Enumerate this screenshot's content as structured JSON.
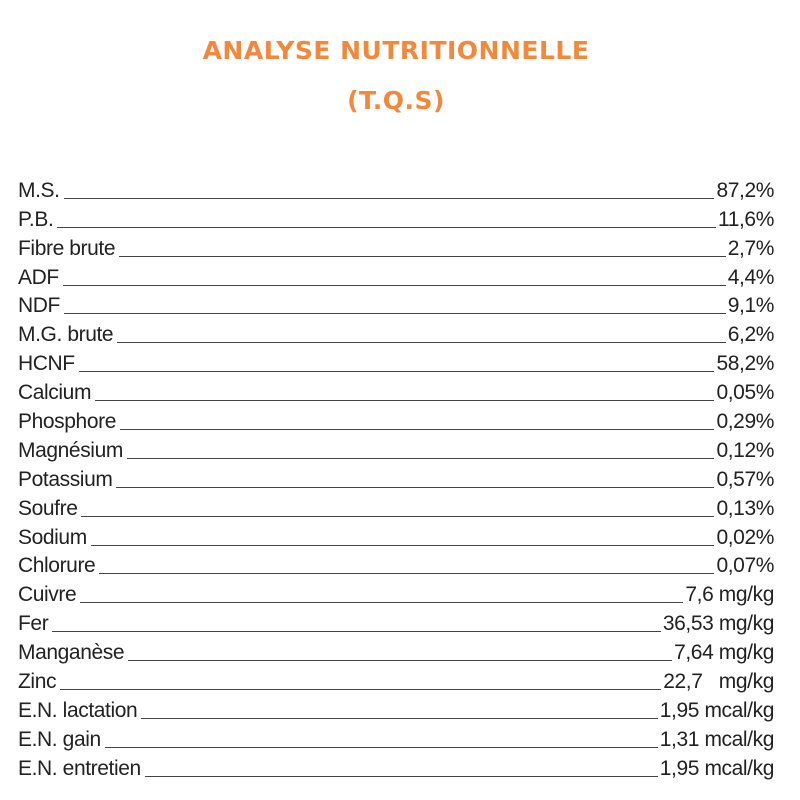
{
  "header": {
    "title": "ANALYSE NUTRITIONNELLE",
    "subtitle": "(T.Q.S)"
  },
  "rows": [
    {
      "label": "M.S.",
      "value": "87,2%"
    },
    {
      "label": "P.B.",
      "value": "11,6%"
    },
    {
      "label": "Fibre brute",
      "value": "2,7%"
    },
    {
      "label": "ADF",
      "value": "4,4%"
    },
    {
      "label": "NDF",
      "value": "9,1%"
    },
    {
      "label": "M.G. brute",
      "value": "6,2%"
    },
    {
      "label": "HCNF",
      "value": "58,2%"
    },
    {
      "label": "Calcium",
      "value": "0,05%"
    },
    {
      "label": "Phosphore",
      "value": "0,29%"
    },
    {
      "label": "Magnésium",
      "value": "0,12%"
    },
    {
      "label": "Potassium",
      "value": "0,57%"
    },
    {
      "label": "Soufre",
      "value": "0,13%"
    },
    {
      "label": "Sodium",
      "value": "0,02%"
    },
    {
      "label": "Chlorure",
      "value": "0,07%"
    },
    {
      "label": "Cuivre",
      "value": "7,6 mg/kg"
    },
    {
      "label": "Fer",
      "value": "36,53 mg/kg"
    },
    {
      "label": "Manganèse",
      "value": "7,64 mg/kg"
    },
    {
      "label": "Zinc",
      "value": "22,7   mg/kg"
    },
    {
      "label": "E.N. lactation",
      "value": "1,95 mcal/kg"
    },
    {
      "label": "E.N. gain",
      "value": "1,31 mcal/kg"
    },
    {
      "label": "E.N. entretien",
      "value": "1,95 mcal/kg"
    }
  ]
}
